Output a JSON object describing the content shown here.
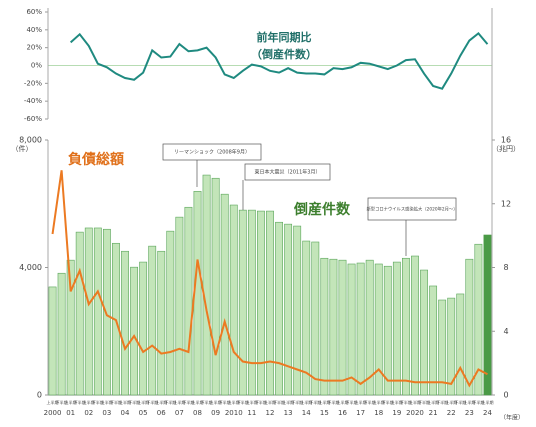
{
  "chart_data": [
    {
      "type": "line",
      "title": "前年同期比",
      "subtitle": "（倒産件数）",
      "categories": [
        "上半期",
        "下半期",
        "上半期",
        "下半期",
        "上半期",
        "下半期",
        "上半期",
        "下半期",
        "上半期",
        "下半期",
        "上半期",
        "下半期",
        "上半期",
        "下半期",
        "上半期",
        "下半期",
        "上半期",
        "下半期",
        "上半期",
        "下半期",
        "上半期",
        "下半期",
        "上半期",
        "下半期",
        "上半期",
        "下半期",
        "上半期",
        "下半期",
        "上半期",
        "下半期",
        "上半期",
        "下半期",
        "上半期",
        "下半期",
        "上半期",
        "下半期",
        "上半期",
        "下半期",
        "上半期",
        "下半期",
        "上半期",
        "下半期",
        "上半期",
        "下半期",
        "上半期",
        "下半期",
        "上半期",
        "下半期",
        "上半期"
      ],
      "series": [
        {
          "name": "前年同期比",
          "color": "#1f8a80",
          "values": [
            null,
            null,
            26,
            35,
            22,
            2,
            -2,
            -9,
            -14,
            -16,
            -8,
            17,
            9,
            10,
            24,
            16,
            17,
            20,
            9,
            -10,
            -14,
            -6,
            1,
            -1,
            -6,
            -8,
            -3,
            -8,
            -9,
            -9,
            -10,
            -3,
            -4,
            -2,
            3,
            2,
            -1,
            -4,
            0,
            6,
            7,
            -9,
            -23,
            -26,
            -9,
            11,
            28,
            36,
            24
          ]
        }
      ],
      "ylim": [
        -60,
        60
      ],
      "yticks": [
        {
          "value": 60,
          "label": "60%"
        },
        {
          "value": 40,
          "label": "40%"
        },
        {
          "value": 20,
          "label": "20%"
        },
        {
          "value": 0,
          "label": "0%"
        },
        {
          "value": -20,
          "label": "-20%"
        },
        {
          "value": -40,
          "label": "-40%"
        },
        {
          "value": -60,
          "label": "-60%"
        }
      ]
    },
    {
      "type": "bar",
      "categories": [
        "上半期",
        "下半期",
        "上半期",
        "下半期",
        "上半期",
        "下半期",
        "上半期",
        "下半期",
        "上半期",
        "下半期",
        "上半期",
        "下半期",
        "上半期",
        "下半期",
        "上半期",
        "下半期",
        "上半期",
        "下半期",
        "上半期",
        "下半期",
        "上半期",
        "下半期",
        "上半期",
        "下半期",
        "上半期",
        "下半期",
        "上半期",
        "下半期",
        "上半期",
        "下半期",
        "上半期",
        "下半期",
        "上半期",
        "下半期",
        "上半期",
        "下半期",
        "上半期",
        "下半期",
        "上半期",
        "下半期",
        "上半期",
        "下半期",
        "上半期",
        "下半期",
        "上半期",
        "下半期",
        "上半期",
        "下半期",
        "上半期"
      ],
      "year_labels": [
        "2000",
        "01",
        "02",
        "03",
        "04",
        "05",
        "06",
        "07",
        "08",
        "09",
        "2010",
        "11",
        "12",
        "13",
        "14",
        "15",
        "16",
        "17",
        "18",
        "19",
        "2020",
        "21",
        "22",
        "23",
        "24"
      ],
      "x_unit": "（年度）",
      "y_unit": "（件）",
      "y2_unit": "（兆円）",
      "series": [
        {
          "name": "倒産件数",
          "color": "#c3e5b9",
          "edge_color": "#5aa55a",
          "highlight_color": "#4a9a46",
          "values": [
            3390,
            3820,
            4230,
            5110,
            5240,
            5240,
            5200,
            4760,
            4510,
            4010,
            4170,
            4670,
            4510,
            5140,
            5580,
            5890,
            6390,
            6900,
            6800,
            6300,
            5960,
            5800,
            5800,
            5770,
            5770,
            5420,
            5360,
            5300,
            4830,
            4800,
            4290,
            4260,
            4230,
            4110,
            4140,
            4230,
            4110,
            4040,
            4170,
            4290,
            4360,
            3920,
            3420,
            2980,
            3040,
            3170,
            4260,
            4730,
            5020
          ]
        },
        {
          "name": "負債総額",
          "color": "#ec7a22",
          "axis": "y2",
          "type": "line",
          "values": [
            10.1,
            14.1,
            6.5,
            7.8,
            5.7,
            6.5,
            5.0,
            4.7,
            2.9,
            3.7,
            2.7,
            3.1,
            2.6,
            2.7,
            2.9,
            2.7,
            8.5,
            5.3,
            2.5,
            4.6,
            2.7,
            2.1,
            2.0,
            2.0,
            2.1,
            2.0,
            1.8,
            1.6,
            1.4,
            1.0,
            0.9,
            0.9,
            0.9,
            1.1,
            0.7,
            1.1,
            1.6,
            0.9,
            0.9,
            0.9,
            0.8,
            0.8,
            0.8,
            0.8,
            0.7,
            1.7,
            0.6,
            1.6,
            1.3
          ]
        }
      ],
      "ylim": [
        0,
        8000
      ],
      "yticks": [
        0,
        {
          "value": 4000,
          "label": "4,000"
        },
        {
          "value": 8000,
          "label": "8,000"
        }
      ],
      "y2lim": [
        0,
        16
      ],
      "y2ticks": [
        0,
        4,
        8,
        12,
        16
      ],
      "annotations": [
        "リーマンショック（2008年9月）",
        "東日本大震災（2011年3月）",
        "新型コロナウイルス感染拡大（2020年2月～）"
      ]
    }
  ]
}
